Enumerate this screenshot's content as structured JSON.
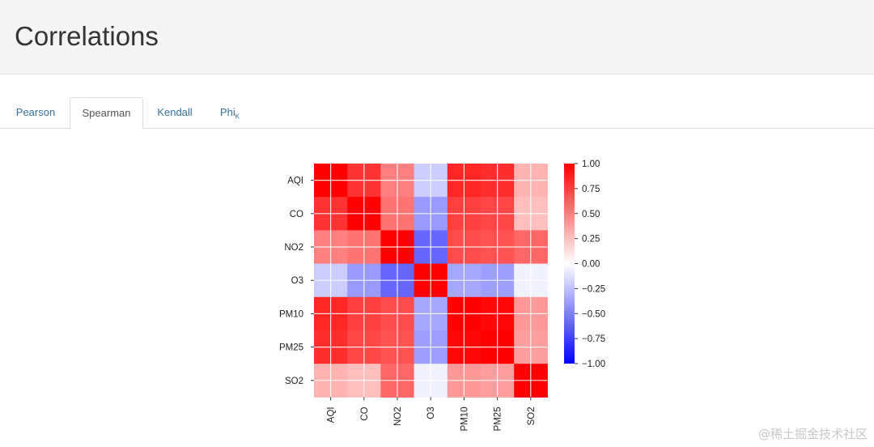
{
  "header": {
    "title": "Correlations"
  },
  "tabs": [
    {
      "label": "Pearson",
      "sub": "",
      "active": false
    },
    {
      "label": "Spearman",
      "sub": "",
      "active": true
    },
    {
      "label": "Kendall",
      "sub": "",
      "active": false
    },
    {
      "label": "Phi",
      "sub": "K",
      "active": false
    }
  ],
  "chart_data": {
    "type": "heatmap",
    "variables": [
      "AQI",
      "CO",
      "NO2",
      "O3",
      "PM10",
      "PM25",
      "SO2"
    ],
    "matrix": [
      [
        1.0,
        0.8,
        0.5,
        -0.2,
        0.85,
        0.82,
        0.3
      ],
      [
        0.8,
        1.0,
        0.55,
        -0.4,
        0.75,
        0.72,
        0.25
      ],
      [
        0.5,
        0.55,
        1.0,
        -0.6,
        0.7,
        0.68,
        0.6
      ],
      [
        -0.2,
        -0.4,
        -0.6,
        1.0,
        -0.35,
        -0.38,
        -0.05
      ],
      [
        0.85,
        0.75,
        0.7,
        -0.35,
        1.0,
        0.97,
        0.4
      ],
      [
        0.82,
        0.72,
        0.68,
        -0.38,
        0.97,
        1.0,
        0.38
      ],
      [
        0.3,
        0.25,
        0.6,
        -0.05,
        0.4,
        0.38,
        1.0
      ]
    ],
    "colorbar": {
      "min": -1.0,
      "max": 1.0,
      "ticks": [
        "1.00",
        "0.75",
        "0.50",
        "0.25",
        "0.00",
        "−0.25",
        "−0.50",
        "−0.75",
        "−1.00"
      ]
    },
    "colors": {
      "low": "#0000ff",
      "mid": "#ffffff",
      "high": "#ff0000"
    },
    "grid": true,
    "legend": "right"
  },
  "watermark": "@稀土掘金技术社区"
}
